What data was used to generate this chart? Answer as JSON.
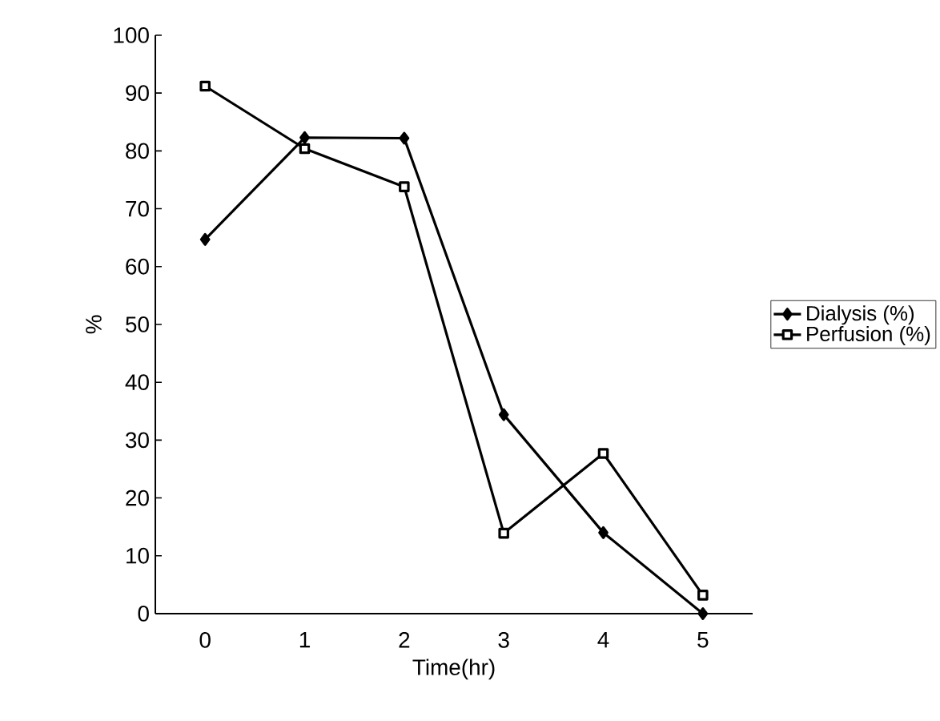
{
  "chart_data": {
    "type": "line",
    "xlabel": "Time(hr)",
    "ylabel": "%",
    "categories": [
      "0",
      "1",
      "2",
      "3",
      "4",
      "5"
    ],
    "series": [
      {
        "name": "Dialysis (%)",
        "color": "#000000",
        "marker": "diamond",
        "values": [
          64.7,
          82.3,
          82.2,
          34.4,
          14,
          0
        ]
      },
      {
        "name": "Perfusion (%)",
        "color": "#000000",
        "marker": "square",
        "values": [
          91.2,
          80.4,
          73.8,
          13.9,
          27.7,
          3.2
        ]
      }
    ],
    "ylim": [
      0,
      100
    ],
    "yticks": [
      0,
      10,
      20,
      30,
      40,
      50,
      60,
      70,
      80,
      90,
      100
    ],
    "legend": "right",
    "grid": false,
    "line_style": "solid"
  }
}
